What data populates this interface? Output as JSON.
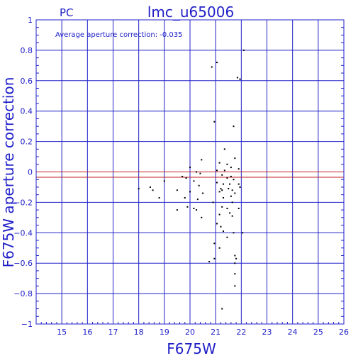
{
  "chart_data": {
    "type": "scatter",
    "title": "lmc_u65006",
    "subtitle": "PC",
    "annotation": "Average aperture correction:  -0.035",
    "xlabel": "F675W",
    "ylabel": "F675W aperture correction",
    "xlim": [
      14,
      26
    ],
    "ylim": [
      -1,
      1
    ],
    "x_ticks": [
      15,
      16,
      17,
      18,
      19,
      20,
      21,
      22,
      23,
      24,
      25,
      26
    ],
    "y_ticks": [
      -1,
      -0.8,
      -0.6,
      -0.4,
      -0.2,
      0,
      0.2,
      0.4,
      0.6,
      0.8,
      1
    ],
    "x_tick_labels": [
      "15",
      "16",
      "17",
      "18",
      "19",
      "20",
      "21",
      "22",
      "23",
      "24",
      "25",
      "26"
    ],
    "y_tick_labels": [
      "−1",
      "−0.8",
      "−0.6",
      "−0.4",
      "−0.2",
      "0",
      "0.2",
      "0.4",
      "0.6",
      "0.8",
      "1"
    ],
    "grid": true,
    "reference_lines": [
      {
        "y": 0,
        "color": "#c02020"
      },
      {
        "y": -0.035,
        "color": "#c02020"
      }
    ],
    "colors": {
      "axes": "#2020c8",
      "points": "#000000",
      "reference": "#c02020"
    },
    "series": [
      {
        "points": [
          [
            20.85,
            0.69
          ],
          [
            21.05,
            0.72
          ],
          [
            21.85,
            0.62
          ],
          [
            21.95,
            0.61
          ],
          [
            22.1,
            0.8
          ],
          [
            20.95,
            0.33
          ],
          [
            21.7,
            0.3
          ],
          [
            21.35,
            0.15
          ],
          [
            21.75,
            0.09
          ],
          [
            20.45,
            0.08
          ],
          [
            21.15,
            0.06
          ],
          [
            21.45,
            0.05
          ],
          [
            21.6,
            0.03
          ],
          [
            21.05,
            0.01
          ],
          [
            21.35,
            0.01
          ],
          [
            20.0,
            0.03
          ],
          [
            21.9,
            0.02
          ],
          [
            20.25,
            0.0
          ],
          [
            20.4,
            -0.01
          ],
          [
            21.25,
            -0.02
          ],
          [
            21.45,
            -0.04
          ],
          [
            21.6,
            -0.03
          ],
          [
            21.7,
            -0.05
          ],
          [
            19.85,
            -0.04
          ],
          [
            19.7,
            -0.03
          ],
          [
            19.0,
            -0.06
          ],
          [
            20.15,
            -0.06
          ],
          [
            21.05,
            -0.07
          ],
          [
            21.3,
            -0.08
          ],
          [
            21.55,
            -0.08
          ],
          [
            21.9,
            -0.08
          ],
          [
            21.95,
            -0.1
          ],
          [
            18.45,
            -0.1
          ],
          [
            20.35,
            -0.09
          ],
          [
            21.2,
            -0.11
          ],
          [
            21.25,
            -0.12
          ],
          [
            21.5,
            -0.11
          ],
          [
            21.65,
            -0.12
          ],
          [
            18.0,
            -0.11
          ],
          [
            18.55,
            -0.12
          ],
          [
            19.5,
            -0.12
          ],
          [
            20.0,
            -0.13
          ],
          [
            20.5,
            -0.14
          ],
          [
            21.15,
            -0.13
          ],
          [
            21.75,
            -0.14
          ],
          [
            21.6,
            -0.16
          ],
          [
            18.8,
            -0.17
          ],
          [
            19.8,
            -0.17
          ],
          [
            20.3,
            -0.18
          ],
          [
            21.3,
            -0.17
          ],
          [
            20.9,
            -0.2
          ],
          [
            21.65,
            -0.2
          ],
          [
            19.9,
            -0.23
          ],
          [
            20.15,
            -0.24
          ],
          [
            21.25,
            -0.23
          ],
          [
            21.9,
            -0.24
          ],
          [
            19.5,
            -0.25
          ],
          [
            20.25,
            -0.25
          ],
          [
            21.45,
            -0.24
          ],
          [
            21.55,
            -0.27
          ],
          [
            21.15,
            -0.28
          ],
          [
            21.65,
            -0.29
          ],
          [
            20.45,
            -0.3
          ],
          [
            21.05,
            -0.34
          ],
          [
            21.2,
            -0.36
          ],
          [
            21.3,
            -0.39
          ],
          [
            21.7,
            -0.4
          ],
          [
            22.05,
            -0.4
          ],
          [
            21.45,
            -0.43
          ],
          [
            20.95,
            -0.47
          ],
          [
            21.15,
            -0.5
          ],
          [
            21.75,
            -0.55
          ],
          [
            21.8,
            -0.57
          ],
          [
            20.95,
            -0.57
          ],
          [
            20.75,
            -0.59
          ],
          [
            21.75,
            -0.6
          ],
          [
            21.75,
            -0.67
          ],
          [
            21.75,
            -0.75
          ],
          [
            21.25,
            -0.9
          ]
        ]
      }
    ]
  }
}
